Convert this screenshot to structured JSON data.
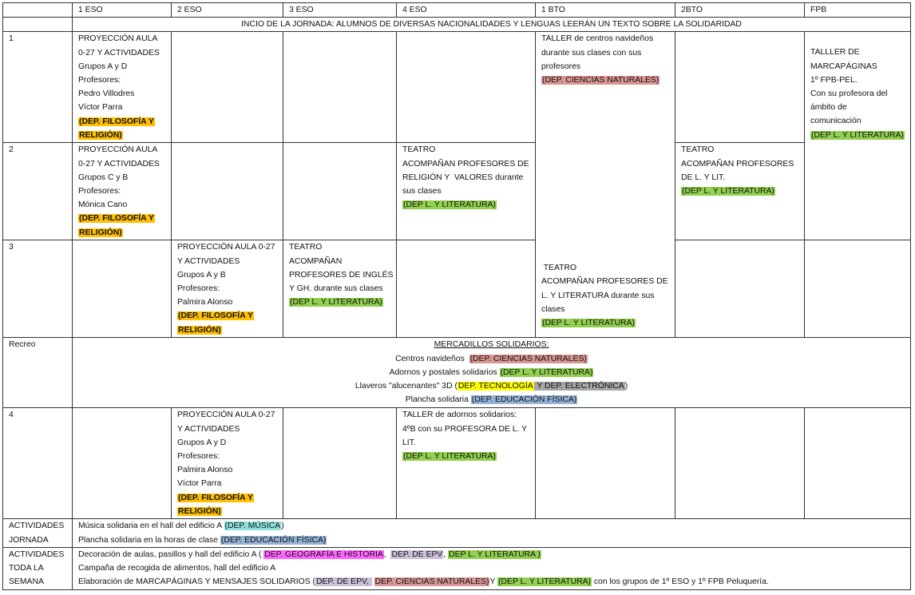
{
  "colors": {
    "orange": "#ffc000",
    "green": "#92d050",
    "red": "#da9694",
    "yellow": "#ffff00",
    "gray": "#a6a6a6",
    "blue": "#95b3d7",
    "cyan": "#8fe3dc",
    "magenta": "#ff66ff",
    "lavender": "#ccc0da"
  },
  "header": [
    "",
    "1 ESO",
    "2 ESO",
    "3 ESO",
    "4 ESO",
    "1 BTO",
    "2BTO",
    "FPB"
  ],
  "intro": "INCIO DE LA JORNADA: ALUMNOS DE DIVERSAS NACIONALIDADES Y LENGUAS LEERÁN UN TEXTO SOBRE LA SOLIDARIDAD",
  "rows": {
    "r1": {
      "label": "1",
      "eso1": [
        [
          "PROYECCIÓN AULA"
        ],
        [
          "0-27 Y ACTIVIDADES"
        ],
        [
          "Grupos A y D"
        ],
        [
          "Profesores:"
        ],
        [
          "Pedro Villodres"
        ],
        [
          "Víctor Parra"
        ],
        [
          {
            "t": "(DEP. FILOSOFÍA Y",
            "hl": "orange",
            "b": true
          }
        ],
        [
          {
            "t": "RELIGIÓN)",
            "hl": "orange",
            "b": true
          }
        ]
      ],
      "bto1_top": [
        [
          "TALLER de centros navideños"
        ],
        [
          "durante sus clases con sus"
        ],
        [
          "profesores"
        ],
        [
          {
            "t": "(DEP. CIENCIAS NATURALES)",
            "hl": "red"
          }
        ]
      ],
      "bto1_bottom": [
        [
          " TEATRO"
        ],
        [
          "ACOMPAÑAN PROFESORES DE"
        ],
        [
          "L. Y LITERATURA durante sus"
        ],
        [
          "clases"
        ],
        [
          {
            "t": "(DEP L. Y LITERATURA)",
            "hl": "green"
          }
        ]
      ],
      "fpb": [
        [
          "TALLLER DE"
        ],
        [
          "MARCAPÁGINAS"
        ],
        [
          "1º FPB-PEL."
        ],
        [
          "Con su profesora del"
        ],
        [
          "ámbito de"
        ],
        [
          "comunicación"
        ],
        [
          {
            "t": "(DEP L. Y LITERATURA)",
            "hl": "green"
          }
        ]
      ]
    },
    "r2": {
      "label": "2",
      "eso1": [
        [
          "PROYECCIÓN AULA"
        ],
        [
          "0-27 Y ACTIVIDADES"
        ],
        [
          "Grupos C y B"
        ],
        [
          "Profesores:"
        ],
        [
          "Mónica Cano"
        ],
        [
          {
            "t": "(DEP. FILOSOFÍA Y",
            "hl": "orange",
            "b": true
          }
        ],
        [
          {
            "t": "RELIGIÓN)",
            "hl": "orange",
            "b": true
          }
        ]
      ],
      "eso4": [
        [
          "TEATRO"
        ],
        [
          "ACOMPAÑAN PROFESORES DE"
        ],
        [
          "RELIGIÓN Y  VALORES durante"
        ],
        [
          "sus clases"
        ],
        [
          {
            "t": "(DEP L. Y LITERATURA)",
            "hl": "green"
          }
        ]
      ],
      "bto2": [
        [
          "TEATRO"
        ],
        [
          "ACOMPAÑAN PROFESORES"
        ],
        [
          "DE L. Y LIT."
        ],
        [
          {
            "t": "(DEP L. Y LITERATURA)",
            "hl": "green"
          }
        ]
      ]
    },
    "r3": {
      "label": "3",
      "eso2": [
        [
          "PROYECCIÓN AULA 0-27"
        ],
        [
          "Y ACTIVIDADES"
        ],
        [
          "Grupos A y B"
        ],
        [
          "Profesores:"
        ],
        [
          "Palmira Alonso"
        ],
        [
          {
            "t": "(DEP. FILOSOFÍA Y",
            "hl": "orange",
            "b": true
          }
        ],
        [
          {
            "t": "RELIGIÓN)",
            "hl": "orange",
            "b": true
          }
        ]
      ],
      "eso3": [
        [
          "TEATRO"
        ],
        [
          "ACOMPAÑAN"
        ],
        [
          "PROFESORES DE INGLÉS"
        ],
        [
          "Y GH. durante sus clases"
        ],
        [
          {
            "t": "(DEP L. Y LITERATURA)",
            "hl": "green"
          }
        ]
      ]
    },
    "recreo": {
      "label": "Recreo",
      "lines": [
        [
          {
            "t": "MERCADILLOS SOLIDARIOS:",
            "u": true
          }
        ],
        [
          "Centros navideños  ",
          {
            "t": "(DEP. CIENCIAS NATURALES)",
            "hl": "red"
          }
        ],
        [
          "Adornos y postales solidarios ",
          {
            "t": "(DEP L. Y LITERATURA)",
            "hl": "green"
          }
        ],
        [
          "Llaveros \"alucenantes\" 3D (",
          {
            "t": "DEP. TECNOLOGÍA",
            "hl": "yellow"
          },
          {
            "t": " Y DEP. ELECTRÓNICA",
            "hl": "gray"
          },
          ")"
        ],
        [
          "Plancha solidaria ",
          {
            "t": "(DEP. EDUCACIÓN FÍSICA)",
            "hl": "blue"
          }
        ]
      ]
    },
    "r4": {
      "label": "4",
      "eso2": [
        [
          "PROYECCIÓN AULA 0-27"
        ],
        [
          "Y ACTIVIDADES"
        ],
        [
          "Grupos A y D"
        ],
        [
          "Profesores:"
        ],
        [
          "Palmira Alonso"
        ],
        [
          "Víctor Parra"
        ],
        [
          {
            "t": "(DEP. FILOSOFÍA Y",
            "hl": "orange",
            "b": true
          }
        ],
        [
          {
            "t": "RELIGIÓN)",
            "hl": "orange",
            "b": true
          }
        ]
      ],
      "eso4": [
        [
          "TALLER de adornos solidarios:"
        ],
        [
          "4ºB con su PROFESORA DE L. Y"
        ],
        [
          "LIT."
        ],
        [
          {
            "t": "(DEP L. Y LITERATURA)",
            "hl": "green"
          }
        ]
      ]
    },
    "jornada": {
      "label": [
        [
          "ACTIVIDADES"
        ],
        [
          "JORNADA"
        ]
      ],
      "lines": [
        [
          "Música solidaria en el hall del edificio A ",
          {
            "t": "(DEP. MÚSICA",
            "hl": "cyan"
          },
          ")"
        ],
        [
          "Plancha solidaria en la horas de clase ",
          {
            "t": "(DEP. EDUCACIÓN FÍSICA)",
            "hl": "blue"
          }
        ]
      ]
    },
    "semana": {
      "label": [
        [
          "ACTIVIDADES"
        ],
        [
          "TODA LA"
        ],
        [
          "SEMANA"
        ]
      ],
      "lines": [
        [
          "Decoración de aulas, pasillos y hall del edificio A ( ",
          {
            "t": "DEP. GEOGRAFÍA E HISTORIA",
            "hl": "magenta"
          },
          ",  ",
          {
            "t": "DEP. DE EPV",
            "hl": "lavender"
          },
          ", ",
          {
            "t": "DEP L. Y LITERATURA )",
            "hl": "green"
          }
        ],
        [
          "Campaña de recogida de alimentos, hall del edificio A"
        ],
        [
          "Elaboración de MARCAPÁGINAS Y MENSAJES SOLIDARIOS (",
          {
            "t": "DEP. DE EPV, ",
            "hl": "lavender"
          },
          " ",
          {
            "t": "DEP. CIENCIAS NATURALES)",
            "hl": "red"
          },
          "Y ",
          {
            "t": "(DEP L. Y LITERATURA)",
            "hl": "green"
          },
          " con los grupos de 1º ESO y 1º FPB Peluquería."
        ]
      ]
    }
  }
}
